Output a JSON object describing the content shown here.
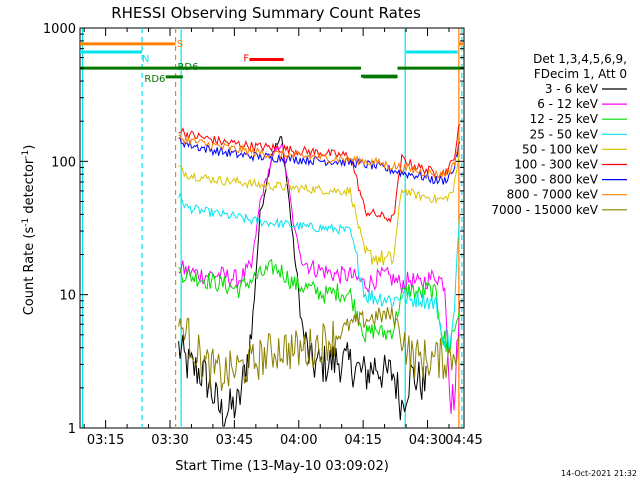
{
  "chart_data": {
    "type": "line",
    "title": "RHESSI Observing Summary Count Rates",
    "xlabel": "Start Time (13-May-10 03:09:02)",
    "ylabel_main": "Count Rate (s",
    "ylabel_sup": "-1",
    "ylabel_tail": " detector",
    "ylabel_end": ")",
    "yscale": "log",
    "ylim": [
      1,
      1000
    ],
    "xlim_minutes": [
      9.03,
      98.5
    ],
    "x_ticks": [
      {
        "label": "03:15",
        "min": 15
      },
      {
        "label": "03:30",
        "min": 30
      },
      {
        "label": "03:45",
        "min": 45
      },
      {
        "label": "04:00",
        "min": 60
      },
      {
        "label": "04:15",
        "min": 75
      },
      {
        "label": "04:30",
        "min": 90
      },
      {
        "label": "04:45",
        "min": 105
      }
    ],
    "y_ticks": [
      {
        "label": "1",
        "v": 1
      },
      {
        "label": "10",
        "v": 10
      },
      {
        "label": "100",
        "v": 100
      },
      {
        "label": "1000",
        "v": 1000
      }
    ],
    "legend_title_1": "Det 1,3,4,5,6,9,",
    "legend_title_2": "FDecim 1, Att 0",
    "series": [
      {
        "name": "3 - 6 keV",
        "color": "#000000",
        "points": [
          [
            9,
            null
          ],
          [
            31,
            null
          ],
          [
            32,
            4
          ],
          [
            34,
            3
          ],
          [
            38,
            2.5
          ],
          [
            42,
            1.3
          ],
          [
            46,
            1.5
          ],
          [
            49,
            5
          ],
          [
            51,
            40
          ],
          [
            54,
            120
          ],
          [
            56,
            150
          ],
          [
            57.5,
            60
          ],
          [
            59,
            20
          ],
          [
            61,
            5
          ],
          [
            63,
            3
          ],
          [
            66,
            3
          ],
          [
            69,
            3.2
          ],
          [
            72,
            3
          ],
          [
            75.5,
            2.5
          ],
          [
            78,
            3
          ],
          [
            80,
            2.5
          ],
          [
            82,
            2.6
          ],
          [
            84,
            1.5
          ],
          [
            86,
            2.5
          ],
          [
            88,
            2.3
          ],
          [
            90,
            2
          ],
          [
            92,
            null
          ]
        ]
      },
      {
        "name": "6 - 12 keV",
        "color": "#ff00ff",
        "points": [
          [
            9,
            null
          ],
          [
            31,
            null
          ],
          [
            32,
            16
          ],
          [
            34,
            15
          ],
          [
            38,
            14
          ],
          [
            42,
            14
          ],
          [
            46,
            13
          ],
          [
            49,
            16
          ],
          [
            51,
            50
          ],
          [
            54,
            110
          ],
          [
            56,
            140
          ],
          [
            57.5,
            70
          ],
          [
            59,
            30
          ],
          [
            61,
            18
          ],
          [
            63,
            16
          ],
          [
            66,
            15
          ],
          [
            69,
            14
          ],
          [
            72,
            14
          ],
          [
            75.5,
            12
          ],
          [
            78,
            13
          ],
          [
            80,
            14
          ],
          [
            82,
            13
          ],
          [
            84,
            12
          ],
          [
            86,
            13
          ],
          [
            88,
            12
          ],
          [
            90,
            13
          ],
          [
            92,
            14
          ],
          [
            94,
            12
          ],
          [
            95.5,
            1.5
          ],
          [
            96.5,
            2
          ],
          [
            97.5,
            9
          ]
        ]
      },
      {
        "name": "12 - 25 keV",
        "color": "#00dd00",
        "points": [
          [
            9,
            null
          ],
          [
            31,
            null
          ],
          [
            32,
            15
          ],
          [
            34,
            14
          ],
          [
            38,
            13
          ],
          [
            42,
            12
          ],
          [
            46,
            11
          ],
          [
            49,
            13
          ],
          [
            51,
            14
          ],
          [
            54,
            16
          ],
          [
            56,
            15
          ],
          [
            59,
            12
          ],
          [
            63,
            11
          ],
          [
            66,
            10
          ],
          [
            69,
            10.5
          ],
          [
            72,
            10
          ],
          [
            75.5,
            5
          ],
          [
            78,
            5.5
          ],
          [
            80,
            5
          ],
          [
            82,
            5.5
          ],
          [
            84,
            10
          ],
          [
            86,
            11
          ],
          [
            88,
            10
          ],
          [
            90,
            11
          ],
          [
            92,
            10
          ],
          [
            94,
            4
          ],
          [
            96,
            5
          ],
          [
            97.5,
            8
          ]
        ]
      },
      {
        "name": "25 - 50 keV",
        "color": "#00e5ee",
        "points": [
          [
            9,
            null
          ],
          [
            31,
            null
          ],
          [
            32,
            55
          ],
          [
            34,
            45
          ],
          [
            38,
            42
          ],
          [
            42,
            40
          ],
          [
            46,
            38
          ],
          [
            49,
            36
          ],
          [
            52,
            35
          ],
          [
            56,
            34
          ],
          [
            59,
            33
          ],
          [
            63,
            32
          ],
          [
            66,
            31.5
          ],
          [
            69,
            31
          ],
          [
            72,
            30
          ],
          [
            75.5,
            10
          ],
          [
            78,
            9.5
          ],
          [
            80,
            9.5
          ],
          [
            82,
            9
          ],
          [
            84,
            10
          ],
          [
            86,
            9
          ],
          [
            88,
            9.5
          ],
          [
            90,
            9
          ],
          [
            92,
            8.5
          ],
          [
            94,
            4
          ],
          [
            96,
            6
          ],
          [
            97.5,
            40
          ]
        ]
      },
      {
        "name": "50 - 100 keV",
        "color": "#d8c400",
        "points": [
          [
            9,
            null
          ],
          [
            31,
            null
          ],
          [
            32,
            90
          ],
          [
            34,
            80
          ],
          [
            38,
            75
          ],
          [
            42,
            72
          ],
          [
            46,
            70
          ],
          [
            49,
            68
          ],
          [
            52,
            66
          ],
          [
            56,
            65
          ],
          [
            59,
            63
          ],
          [
            63,
            62
          ],
          [
            66,
            61
          ],
          [
            69,
            60
          ],
          [
            72,
            60
          ],
          [
            75.5,
            20
          ],
          [
            78,
            19
          ],
          [
            80,
            18.5
          ],
          [
            82,
            18
          ],
          [
            84,
            62
          ],
          [
            86,
            58
          ],
          [
            88,
            55
          ],
          [
            90,
            54
          ],
          [
            92,
            52
          ],
          [
            94,
            52
          ],
          [
            96,
            60
          ],
          [
            97.5,
            115
          ]
        ]
      },
      {
        "name": "100 - 300 keV",
        "color": "#ff0000",
        "points": [
          [
            9,
            null
          ],
          [
            31,
            null
          ],
          [
            32,
            175
          ],
          [
            34,
            160
          ],
          [
            38,
            150
          ],
          [
            42,
            140
          ],
          [
            46,
            135
          ],
          [
            49,
            130
          ],
          [
            52,
            128
          ],
          [
            56,
            125
          ],
          [
            59,
            120
          ],
          [
            63,
            118
          ],
          [
            66,
            115
          ],
          [
            69,
            112
          ],
          [
            72,
            110
          ],
          [
            75.5,
            42
          ],
          [
            78,
            40
          ],
          [
            80,
            38
          ],
          [
            82,
            37
          ],
          [
            84,
            105
          ],
          [
            86,
            96
          ],
          [
            88,
            90
          ],
          [
            90,
            86
          ],
          [
            92,
            82
          ],
          [
            94,
            82
          ],
          [
            96,
            100
          ],
          [
            97.5,
            190
          ]
        ]
      },
      {
        "name": "300 - 800 keV",
        "color": "#0000ff",
        "points": [
          [
            9,
            null
          ],
          [
            31,
            null
          ],
          [
            32,
            145
          ],
          [
            34,
            135
          ],
          [
            38,
            125
          ],
          [
            42,
            118
          ],
          [
            46,
            112
          ],
          [
            49,
            110
          ],
          [
            52,
            108
          ],
          [
            56,
            106
          ],
          [
            59,
            104
          ],
          [
            63,
            102
          ],
          [
            66,
            101
          ],
          [
            69,
            100
          ],
          [
            72,
            98
          ],
          [
            75.5,
            95
          ],
          [
            78,
            92
          ],
          [
            80,
            88
          ],
          [
            82,
            86
          ],
          [
            84,
            82
          ],
          [
            86,
            80
          ],
          [
            88,
            78
          ],
          [
            90,
            75
          ],
          [
            92,
            72
          ],
          [
            94,
            72
          ],
          [
            96,
            85
          ],
          [
            97.5,
            140
          ]
        ]
      },
      {
        "name": "800 - 7000 keV",
        "color": "#ff8000",
        "points": [
          [
            9,
            null
          ],
          [
            31,
            null
          ],
          [
            32,
            150
          ],
          [
            34,
            145
          ],
          [
            38,
            135
          ],
          [
            42,
            128
          ],
          [
            46,
            122
          ],
          [
            49,
            118
          ],
          [
            52,
            115
          ],
          [
            56,
            112
          ],
          [
            59,
            110
          ],
          [
            63,
            108
          ],
          [
            66,
            106
          ],
          [
            69,
            105
          ],
          [
            72,
            103
          ],
          [
            75.5,
            100
          ],
          [
            78,
            98
          ],
          [
            80,
            95
          ],
          [
            82,
            92
          ],
          [
            84,
            90
          ],
          [
            86,
            87
          ],
          [
            88,
            84
          ],
          [
            90,
            82
          ],
          [
            92,
            80
          ],
          [
            94,
            80
          ],
          [
            96,
            92
          ],
          [
            97.5,
            150
          ]
        ]
      },
      {
        "name": "7000 - 15000 keV",
        "color": "#8b8000",
        "points": [
          [
            9,
            null
          ],
          [
            31,
            null
          ],
          [
            32,
            6
          ],
          [
            34,
            5
          ],
          [
            38,
            3
          ],
          [
            42,
            2.5
          ],
          [
            46,
            2.8
          ],
          [
            49,
            3
          ],
          [
            52,
            3.5
          ],
          [
            56,
            4
          ],
          [
            59,
            3.8
          ],
          [
            63,
            4
          ],
          [
            66,
            4.5
          ],
          [
            69,
            5
          ],
          [
            72,
            6
          ],
          [
            75.5,
            6.5
          ],
          [
            78,
            6.8
          ],
          [
            80,
            7
          ],
          [
            82,
            7
          ],
          [
            84,
            5
          ],
          [
            86,
            3.5
          ],
          [
            88,
            3.3
          ],
          [
            90,
            3.3
          ],
          [
            92,
            3.3
          ],
          [
            94,
            3.3
          ],
          [
            96,
            3.5
          ],
          [
            97.5,
            5
          ]
        ]
      }
    ],
    "flag_lines": [
      {
        "label": "S",
        "color": "#ff8000",
        "v": 760,
        "segments": [
          [
            9.03,
            31.3
          ],
          [
            97.3,
            98.5
          ]
        ]
      },
      {
        "label": "N",
        "color": "#00e5ee",
        "v": 660,
        "segments": [
          [
            9.03,
            23.5
          ],
          [
            85,
            97
          ]
        ]
      },
      {
        "label": "RD6",
        "color": "#007700",
        "v": 500,
        "segments": [
          [
            9.03,
            45.5
          ],
          [
            45.5,
            74.5
          ],
          [
            74.5,
            83
          ],
          [
            83,
            98.5
          ]
        ],
        "dy": [
          0,
          0,
          1,
          0
        ]
      },
      {
        "label": "RD6",
        "color": "#007700",
        "v": 430,
        "segments": [
          [
            29,
            33
          ],
          [
            75,
            83
          ]
        ]
      },
      {
        "label": "F",
        "color": "#ff0000",
        "v": 580,
        "segments": [
          [
            48.5,
            56.5
          ]
        ]
      }
    ],
    "vlines": [
      {
        "min": 9.6,
        "color": "#00e5ee",
        "dashed": false
      },
      {
        "min": 23.5,
        "color": "#00e5ee",
        "dashed": true
      },
      {
        "min": 31.3,
        "color": "#ff8000",
        "dashed": true
      },
      {
        "min": 32.6,
        "color": "#00e5ee",
        "dashed": false
      },
      {
        "min": 84.8,
        "color": "#00e5ee",
        "dashed": false
      },
      {
        "min": 97.3,
        "color": "#ff8000",
        "dashed": false
      },
      {
        "min": 98.0,
        "color": "#00e5ee",
        "dashed": true
      }
    ],
    "flag_label_S": "S",
    "flag_label_N": "N",
    "flag_label_RD6_a": "RD6",
    "flag_label_RD6_b": "RD6",
    "flag_label_F": "F",
    "timestamp": "14-Oct-2021 21:32"
  }
}
